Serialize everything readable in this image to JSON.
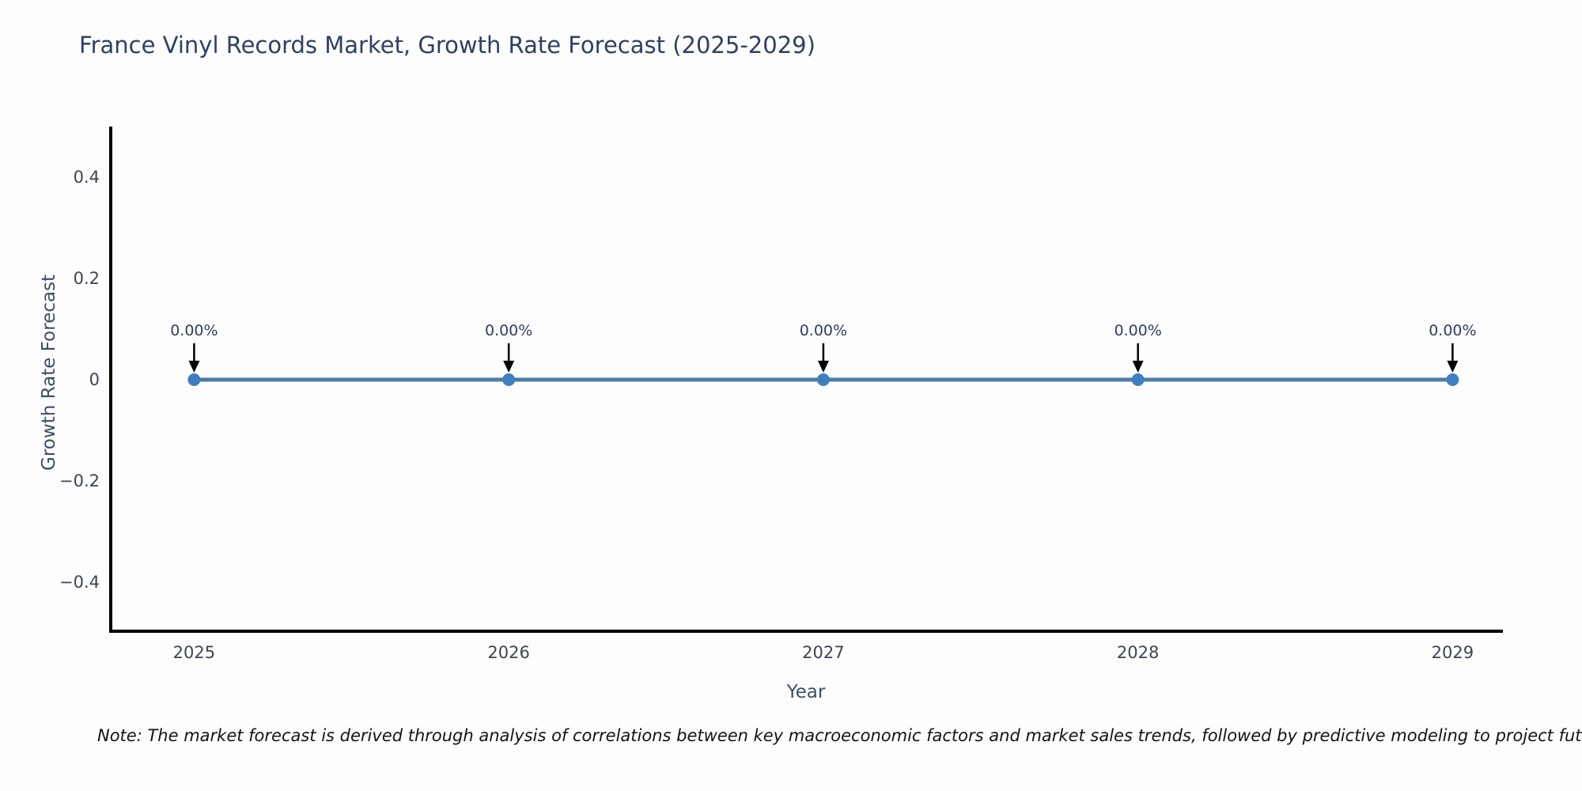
{
  "title": "France Vinyl Records Market, Growth Rate Forecast (2025-2029)",
  "note": "Note: The market forecast is derived through analysis of correlations between key macroeconomic factors and market sales trends, followed by predictive modeling to project future sa",
  "chart_data": {
    "type": "line",
    "title": "France Vinyl Records Market, Growth Rate Forecast (2025-2029)",
    "xlabel": "Year",
    "ylabel": "Growth Rate Forecast",
    "x": [
      2025,
      2026,
      2027,
      2028,
      2029
    ],
    "values": [
      0,
      0,
      0,
      0,
      0
    ],
    "point_labels": [
      "0.00%",
      "0.00%",
      "0.00%",
      "0.00%",
      "0.00%"
    ],
    "xticks": [
      2025,
      2026,
      2027,
      2028,
      2029
    ],
    "xtick_labels": [
      "2025",
      "2026",
      "2027",
      "2028",
      "2029"
    ],
    "yticks": [
      0.4,
      0.2,
      0,
      -0.2,
      -0.4
    ],
    "ytick_labels": [
      "0.4",
      "0.2",
      "0",
      "−0.2",
      "−0.4"
    ],
    "xlim": [
      2024.74,
      2029.17
    ],
    "ylim": [
      -0.5,
      0.5
    ],
    "grid": false,
    "legend": false,
    "line_color": "#4e7ca6",
    "marker_color": "#3d7fc1",
    "arrow_color": "#000000",
    "axis_color": "#000000"
  }
}
